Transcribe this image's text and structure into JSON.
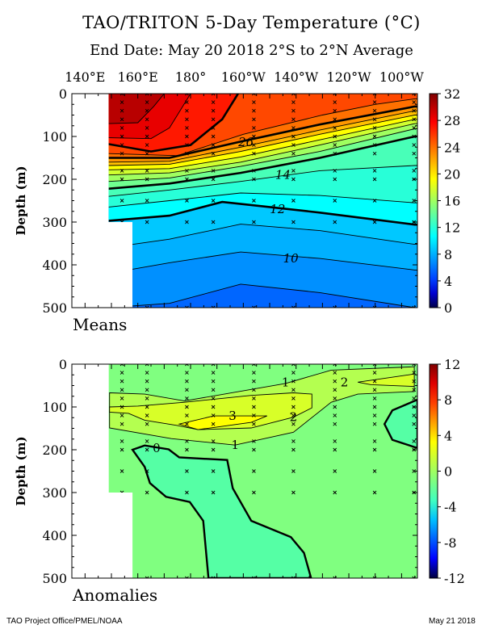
{
  "header": {
    "title": "TAO/TRITON 5-Day Temperature (°C)",
    "subtitle": "End Date: May 20 2018  2°S to 2°N Average"
  },
  "footer": {
    "left": "TAO Project Office/PMEL/NOAA",
    "right": "May 21 2018"
  },
  "chart_data": {
    "type": "contour",
    "xlabel_ticks": [
      {
        "lon": 140,
        "label": "140°E"
      },
      {
        "lon": 160,
        "label": "160°E"
      },
      {
        "lon": 180,
        "label": "180°"
      },
      {
        "lon": 200,
        "label": "160°W"
      },
      {
        "lon": 220,
        "label": "140°W"
      },
      {
        "lon": 240,
        "label": "120°W"
      },
      {
        "lon": 260,
        "label": "100°W"
      }
    ],
    "xlim": [
      135,
      266
    ],
    "ylabel": "Depth (m)",
    "ylim": [
      0,
      500
    ],
    "yticks": [
      "0",
      "100",
      "200",
      "300",
      "400",
      "500"
    ],
    "data_extent": {
      "lon_min_shallow": 149,
      "lon_min_deep": 158,
      "deep_depth": 300,
      "lon_max": 266
    },
    "stations": {
      "lons": [
        154,
        163.5,
        178.6,
        188.6,
        204,
        219,
        234.7,
        249.8,
        264.7
      ],
      "depths": [
        0,
        20,
        40,
        60,
        80,
        100,
        120,
        140,
        180,
        200,
        250,
        300,
        500
      ]
    },
    "panels": [
      {
        "name": "Means",
        "label": "Means",
        "base_color": "#0066ff",
        "colorbar": {
          "min": 0,
          "max": 32,
          "ticks": [
            "32",
            "28",
            "24",
            "20",
            "16",
            "12",
            "8",
            "4",
            "0"
          ],
          "stops": [
            "#00004a",
            "#0000d0",
            "#0040ff",
            "#0080ff",
            "#00c0ff",
            "#00ffff",
            "#40ffc0",
            "#80ff80",
            "#c0ff40",
            "#ffff00",
            "#ffc000",
            "#ff8000",
            "#ff4000",
            "#ff0000",
            "#c00000",
            "#800000"
          ]
        },
        "levels": [
          {
            "value": 9,
            "color": "#0090ff",
            "points": [
              [
                149,
                500
              ],
              [
                172,
                490
              ],
              [
                199,
                445
              ],
              [
                229,
                465
              ],
              [
                265,
                500
              ]
            ]
          },
          {
            "value": 10,
            "color": "#00b0ff",
            "label": "10",
            "label_at": [
              218,
              385
            ],
            "points": [
              [
                149,
                420
              ],
              [
                172,
                395
              ],
              [
                199,
                370
              ],
              [
                229,
                385
              ],
              [
                265,
                412
              ]
            ]
          },
          {
            "value": 11,
            "color": "#00c8ff",
            "points": [
              [
                149,
                360
              ],
              [
                172,
                340
              ],
              [
                199,
                305
              ],
              [
                229,
                320
              ],
              [
                265,
                352
              ]
            ]
          },
          {
            "value": 12,
            "color": "#00ffff",
            "thick": true,
            "label": "12",
            "label_at": [
              213,
              270
            ],
            "points": [
              [
                149,
                297
              ],
              [
                172,
                285
              ],
              [
                192,
                253
              ],
              [
                210,
                265
              ],
              [
                229,
                278
              ],
              [
                265,
                306
              ]
            ]
          },
          {
            "value": 13,
            "color": "#28ffd8",
            "points": [
              [
                149,
                265
              ],
              [
                172,
                250
              ],
              [
                199,
                232
              ],
              [
                229,
                238
              ],
              [
                265,
                255
              ]
            ]
          },
          {
            "value": 14,
            "color": "#48ffb8",
            "label": "14",
            "label_at": [
              215,
              190
            ],
            "points": [
              [
                149,
                240
              ],
              [
                172,
                225
              ],
              [
                199,
                205
              ],
              [
                229,
                180
              ],
              [
                265,
                168
              ]
            ]
          },
          {
            "value": 16,
            "color": "#70ff90",
            "thick": true,
            "points": [
              [
                149,
                222
              ],
              [
                172,
                210
              ],
              [
                199,
                185
              ],
              [
                229,
                150
              ],
              [
                265,
                100
              ]
            ]
          },
          {
            "value": 18,
            "color": "#a0ff60",
            "points": [
              [
                149,
                205
              ],
              [
                172,
                197
              ],
              [
                199,
                170
              ],
              [
                229,
                135
              ],
              [
                265,
                82
              ]
            ]
          },
          {
            "value": 20,
            "color": "#d0ff30",
            "points": [
              [
                149,
                190
              ],
              [
                172,
                185
              ],
              [
                199,
                160
              ],
              [
                229,
                120
              ],
              [
                265,
                70
              ]
            ]
          },
          {
            "value": 22,
            "color": "#ffff00",
            "points": [
              [
                149,
                178
              ],
              [
                172,
                175
              ],
              [
                199,
                148
              ],
              [
                229,
                108
              ],
              [
                265,
                60
              ]
            ]
          },
          {
            "value": 24,
            "color": "#ffc000",
            "points": [
              [
                149,
                168
              ],
              [
                172,
                165
              ],
              [
                199,
                135
              ],
              [
                229,
                95
              ],
              [
                265,
                50
              ]
            ]
          },
          {
            "value": 25,
            "color": "#ff9800",
            "points": [
              [
                149,
                160
              ],
              [
                172,
                158
              ],
              [
                199,
                125
              ],
              [
                229,
                85
              ],
              [
                265,
                40
              ]
            ]
          },
          {
            "value": 26,
            "color": "#ff7000",
            "thick": true,
            "label": "26",
            "label_at": [
              201,
              113
            ],
            "points": [
              [
                149,
                150
              ],
              [
                172,
                150
              ],
              [
                199,
                112
              ],
              [
                229,
                72
              ],
              [
                265,
                30
              ]
            ]
          },
          {
            "value": 27,
            "color": "#ff4800",
            "points": [
              [
                149,
                140
              ],
              [
                175,
                145
              ],
              [
                200,
                95
              ],
              [
                230,
                50
              ],
              [
                250,
                25
              ],
              [
                265,
                12
              ]
            ]
          },
          {
            "value": 28,
            "color": "#ff1800",
            "thick": true,
            "points": [
              [
                149,
                118
              ],
              [
                165,
                135
              ],
              [
                180,
                120
              ],
              [
                192,
                60
              ],
              [
                197,
                10
              ],
              [
                198,
                0
              ]
            ]
          },
          {
            "value": 29,
            "color": "#e80000",
            "points": [
              [
                149,
                103
              ],
              [
                165,
                105
              ],
              [
                172,
                80
              ],
              [
                178,
                20
              ],
              [
                180,
                0
              ]
            ]
          },
          {
            "value": 30,
            "color": "#b80000",
            "points": [
              [
                149,
                70
              ],
              [
                160,
                68
              ],
              [
                166,
                30
              ],
              [
                170,
                0
              ]
            ]
          }
        ]
      },
      {
        "name": "Anomalies",
        "label": "Anomalies",
        "base_color": "#80ff80",
        "colorbar": {
          "min": -12,
          "max": 12,
          "ticks": [
            "12",
            "8",
            "4",
            "0",
            "-4",
            "-8",
            "-12"
          ],
          "stops": [
            "#000040",
            "#0000ff",
            "#0060ff",
            "#00c0ff",
            "#40ffc0",
            "#80ff80",
            "#c0ff40",
            "#ffff00",
            "#ffa000",
            "#ff4000",
            "#e00000",
            "#800000"
          ]
        },
        "regions": [
          {
            "value": 1,
            "color": "#b4ff50",
            "points": [
              [
                149.3,
                67
              ],
              [
                162.6,
                70
              ],
              [
                177.7,
                86
              ],
              [
                216,
                45
              ],
              [
                233.3,
                14
              ],
              [
                264.8,
                6
              ],
              [
                264.8,
                64
              ],
              [
                243.4,
                70
              ],
              [
                233.3,
                89
              ],
              [
                219,
                159
              ],
              [
                196.9,
                189
              ],
              [
                172.7,
                174
              ],
              [
                149.3,
                149
              ]
            ]
          },
          {
            "value": 2,
            "color": "#d8ff28",
            "points": [
              [
                149.3,
                100
              ],
              [
                160,
                98
              ],
              [
                177.7,
                89
              ],
              [
                203,
                73
              ],
              [
                219,
                67
              ],
              [
                226,
                70
              ],
              [
                226,
                102
              ],
              [
                219,
                124
              ],
              [
                203,
                149
              ],
              [
                182.8,
                153
              ],
              [
                174.7,
                143
              ],
              [
                162.6,
                131
              ],
              [
                156.5,
                115
              ],
              [
                149.3,
                112
              ]
            ]
          },
          {
            "value": 2,
            "color": "#d8ff28",
            "points": [
              [
                243.4,
                42
              ],
              [
                264.8,
                23
              ],
              [
                264.8,
                52
              ],
              [
                248.4,
                48
              ]
            ]
          },
          {
            "value": 3,
            "color": "#ffff00",
            "points": [
              [
                175.7,
                140
              ],
              [
                188.8,
                121
              ],
              [
                209,
                121
              ],
              [
                203,
                136
              ],
              [
                182.8,
                153
              ]
            ]
          },
          {
            "value": 0,
            "color": "#55ffa5",
            "thick": true,
            "points": [
              [
                158,
                200
              ],
              [
                162.6,
                190
              ],
              [
                171.7,
                199
              ],
              [
                175.7,
                218
              ],
              [
                193.9,
                224
              ],
              [
                196,
                290
              ],
              [
                203,
                366
              ],
              [
                218,
                404
              ],
              [
                223,
                441
              ],
              [
                225.7,
                500
              ],
              [
                186.8,
                500
              ],
              [
                184.8,
                366
              ],
              [
                179.7,
                322
              ],
              [
                170.7,
                310
              ],
              [
                164.6,
                278
              ],
              [
                162.6,
                240
              ]
            ]
          },
          {
            "value": 0,
            "color": "#55ffa5",
            "thick": true,
            "points": [
              [
                266,
                83
              ],
              [
                256.5,
                108
              ],
              [
                253.5,
                140
              ],
              [
                256.5,
                177
              ],
              [
                266,
                196
              ]
            ]
          }
        ],
        "labels": [
          {
            "text": "1",
            "at": [
              216,
              42
            ]
          },
          {
            "text": "2",
            "at": [
              238.3,
              42
            ]
          },
          {
            "text": "3",
            "at": [
              195.9,
              121
            ]
          },
          {
            "text": "2",
            "at": [
              219,
              124
            ]
          },
          {
            "text": "1",
            "at": [
              196.9,
              189
            ]
          },
          {
            "text": "0",
            "at": [
              167.1,
              196
            ]
          }
        ]
      }
    ]
  }
}
